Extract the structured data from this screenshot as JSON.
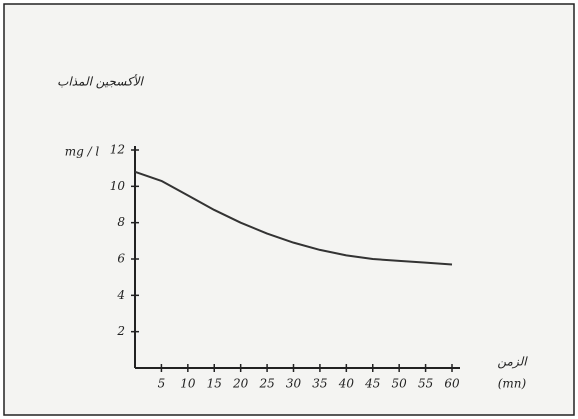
{
  "chart_data": {
    "type": "line",
    "ylabel": "الأكسجين المذاب",
    "yunit": "mg / l",
    "xlabel": "الزمن",
    "xunit": "(mn)",
    "x": [
      0,
      5,
      10,
      15,
      20,
      25,
      30,
      35,
      40,
      45,
      50,
      55,
      60
    ],
    "series": [
      {
        "name": null,
        "color": "#333333",
        "values": [
          10.8,
          10.3,
          9.5,
          8.7,
          8.0,
          7.4,
          6.9,
          6.5,
          6.2,
          6.0,
          5.9,
          5.8,
          5.7
        ]
      }
    ],
    "xlim": [
      0,
      60
    ],
    "xticks": [
      5,
      10,
      15,
      20,
      25,
      30,
      35,
      40,
      45,
      50,
      55,
      60
    ],
    "ylim": [
      0,
      12
    ],
    "yticks": [
      2,
      4,
      6,
      8,
      10,
      12
    ],
    "grid": false
  }
}
